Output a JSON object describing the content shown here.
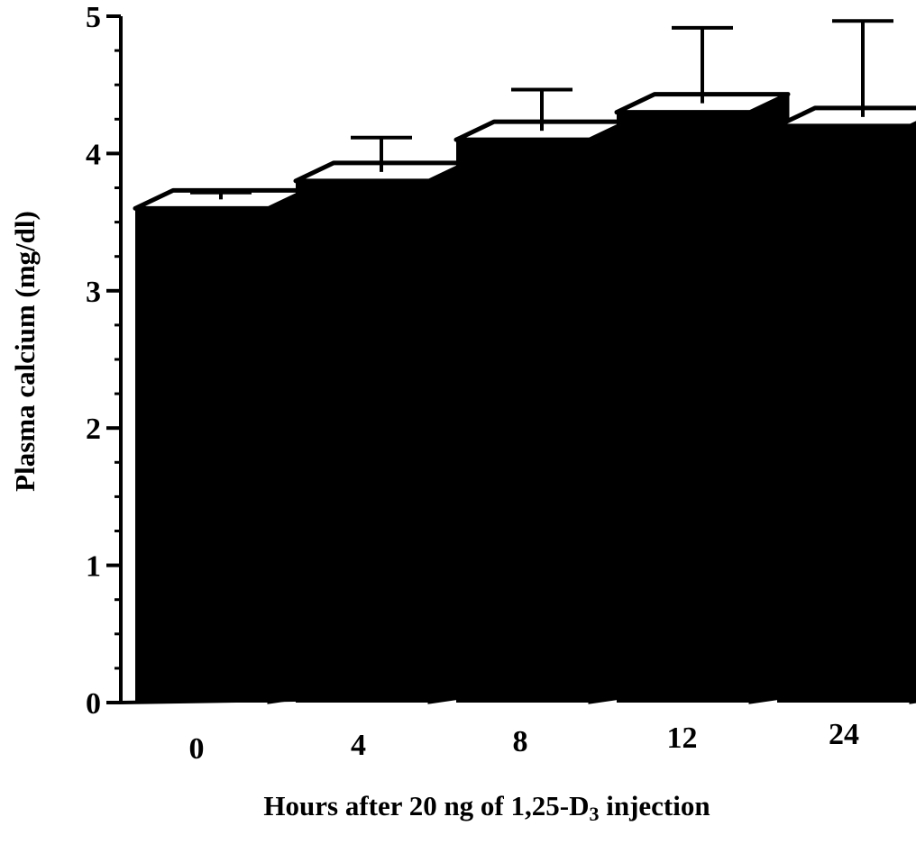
{
  "chart_data": {
    "type": "bar",
    "title": "",
    "xlabel": "Hours after 20 ng of 1,25-D3 injection",
    "xlabel_parts": {
      "before_subscript": "Hours after 20 ng of 1,25-D",
      "subscript": "3",
      "after_subscript": " injection"
    },
    "ylabel": "Plasma calcium (mg/dl)",
    "categories": [
      "0",
      "4",
      "8",
      "12",
      "24"
    ],
    "values": [
      3.6,
      3.8,
      4.1,
      4.3,
      4.2
    ],
    "error_upper": [
      0.05,
      0.25,
      0.3,
      0.55,
      0.7
    ],
    "ylim": [
      0,
      5
    ],
    "yticks": [
      0,
      1,
      2,
      3,
      4,
      5
    ],
    "bar_color": "#000000",
    "bar_style": "3d",
    "grid": false,
    "legend": "none"
  }
}
